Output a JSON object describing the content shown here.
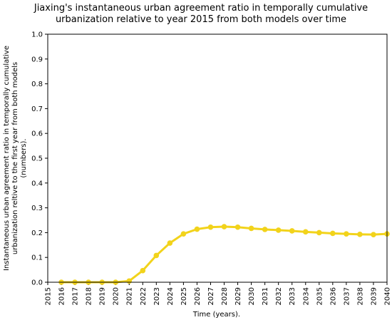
{
  "chart_data": {
    "type": "line",
    "title_lines": [
      "Jiaxing's instantaneous urban agreement ratio in temporally cumulative",
      "urbanization relative to year 2015 from both models over time"
    ],
    "xlabel": "Time (years).",
    "ylabel_lines": [
      "Instantaneous urban agreement ratio in temporally cumulative",
      "urbanization reltive to the first year from both models",
      "(numbers)."
    ],
    "x_ticks": [
      "2015",
      "2016",
      "2017",
      "2018",
      "2019",
      "2020",
      "2021",
      "2022",
      "2023",
      "2024",
      "2025",
      "2026",
      "2027",
      "2028",
      "2029",
      "2030",
      "2031",
      "2032",
      "2033",
      "2034",
      "2035",
      "2036",
      "2037",
      "2038",
      "2039",
      "2040"
    ],
    "y_ticks": [
      "0.0",
      "0.1",
      "0.2",
      "0.3",
      "0.4",
      "0.5",
      "0.6",
      "0.7",
      "0.8",
      "0.9",
      "1.0"
    ],
    "xlim": [
      2015,
      2040
    ],
    "ylim": [
      0,
      1
    ],
    "grid": false,
    "series": [
      {
        "color": "#f2d31b",
        "x": [
          2016,
          2017,
          2018,
          2019,
          2020,
          2021,
          2022,
          2023,
          2024,
          2025,
          2026,
          2027,
          2028,
          2029,
          2030,
          2031,
          2032,
          2033,
          2034,
          2035,
          2036,
          2037,
          2038,
          2039,
          2040
        ],
        "values": [
          0.0,
          0.0,
          0.0,
          0.0,
          0.0,
          0.005,
          0.047,
          0.108,
          0.158,
          0.195,
          0.214,
          0.222,
          0.224,
          0.222,
          0.217,
          0.213,
          0.21,
          0.207,
          0.203,
          0.2,
          0.197,
          0.195,
          0.193,
          0.192,
          0.195
        ]
      }
    ]
  }
}
